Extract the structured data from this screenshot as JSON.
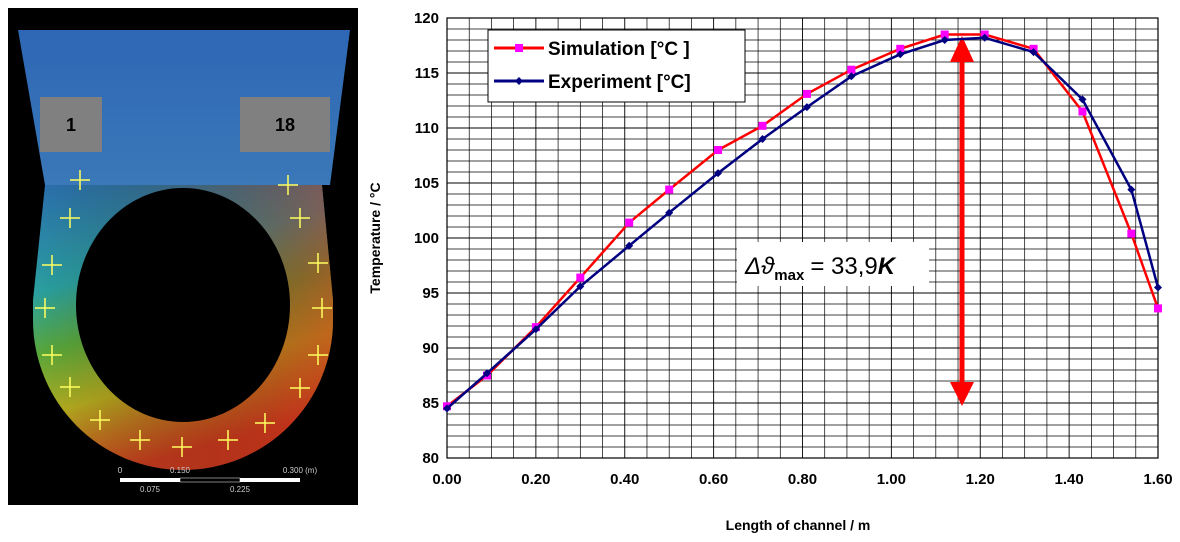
{
  "simulation_image": {
    "labels": [
      "1",
      "18"
    ],
    "scale_labels": [
      "0",
      "0.150",
      "0.300 (m)",
      "0.075",
      "0.225"
    ]
  },
  "chart_data": {
    "type": "line",
    "x_label": "Length of channel / m",
    "y_label": "Temperature / °C",
    "x": [
      0,
      0.09,
      0.2,
      0.3,
      0.41,
      0.5,
      0.61,
      0.71,
      0.81,
      0.91,
      1.02,
      1.12,
      1.21,
      1.32,
      1.43,
      1.54,
      1.6
    ],
    "series": [
      {
        "name": "Simulation [°C ]",
        "color": "#ff0000",
        "marker": "square",
        "marker_color": "#ff00ff",
        "values": [
          84.7,
          87.5,
          91.9,
          96.4,
          101.4,
          104.4,
          108.0,
          110.2,
          113.1,
          115.3,
          117.2,
          118.5,
          118.5,
          117.2,
          111.5,
          100.4,
          93.6
        ]
      },
      {
        "name": "Experiment [°C]",
        "color": "#000080",
        "marker": "diamond",
        "marker_color": "#000080",
        "values": [
          84.5,
          87.7,
          91.7,
          95.6,
          99.3,
          102.3,
          105.9,
          109.0,
          111.9,
          114.7,
          116.7,
          118.0,
          118.2,
          116.9,
          112.6,
          104.4,
          95.5
        ]
      }
    ],
    "xlim": [
      0,
      1.6
    ],
    "ylim": [
      80,
      120
    ],
    "xticks": [
      {
        "value": 0,
        "label": "0.00"
      },
      {
        "value": 0.2,
        "label": "0.20"
      },
      {
        "value": 0.4,
        "label": "0.40"
      },
      {
        "value": 0.6,
        "label": "0.60"
      },
      {
        "value": 0.8,
        "label": "0.80"
      },
      {
        "value": 1.0,
        "label": "1.00"
      },
      {
        "value": 1.2,
        "label": "1.20"
      },
      {
        "value": 1.4,
        "label": "1.40"
      },
      {
        "value": 1.6,
        "label": "1.60"
      }
    ],
    "yticks": [
      80,
      85,
      90,
      95,
      100,
      105,
      110,
      115,
      120
    ],
    "grid": true,
    "x_minor_grid": [
      0.05,
      0.1,
      0.15,
      0.25,
      0.3,
      0.35,
      0.45,
      0.5,
      0.55,
      0.65,
      0.7,
      0.75,
      0.85,
      0.9,
      0.95,
      1.05,
      1.1,
      1.15,
      1.25,
      1.3,
      1.35,
      1.45,
      1.5,
      1.55
    ],
    "y_minor_grid": [
      81,
      82,
      83,
      84,
      86,
      87,
      88,
      89,
      91,
      92,
      93,
      94,
      96,
      97,
      98,
      99,
      101,
      102,
      103,
      104,
      106,
      107,
      108,
      109,
      111,
      112,
      113,
      114,
      116,
      117,
      118,
      119
    ],
    "legend": "top-left",
    "annotation": {
      "symbol": "Δϑ",
      "subscript": "max",
      "equals": "= 33,9",
      "unit": "K"
    }
  }
}
